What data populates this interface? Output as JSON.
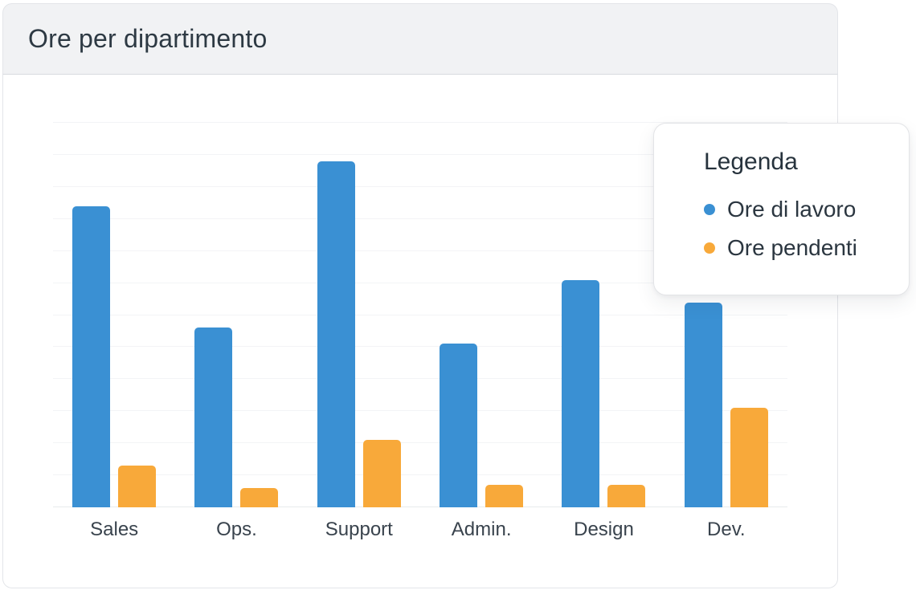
{
  "header": {
    "title": "Ore per dipartimento"
  },
  "legend": {
    "title": "Legenda",
    "items": [
      {
        "label": "Ore di lavoro",
        "color": "#3A90D3"
      },
      {
        "label": "Ore pendenti",
        "color": "#F8A93A"
      }
    ]
  },
  "chart_data": {
    "type": "bar",
    "title": "Ore per dipartimento",
    "categories": [
      "Sales",
      "Ops.",
      "Support",
      "Admin.",
      "Design",
      "Dev."
    ],
    "series": [
      {
        "name": "Ore di lavoro",
        "color": "#3A90D3",
        "values": [
          94,
          56,
          108,
          51,
          71,
          64
        ]
      },
      {
        "name": "Ore pendenti",
        "color": "#F8A93A",
        "values": [
          13,
          6,
          21,
          7,
          7,
          31
        ]
      }
    ],
    "xlabel": "",
    "ylabel": "",
    "ylim": [
      0,
      120
    ],
    "grid": true,
    "grid_interval": 10,
    "gridlines": "horizontal",
    "y_tick_labels_visible": false,
    "legend_position": "top-right",
    "colors": {
      "bar_blue": "#3A90D3",
      "bar_orange": "#F8A93A",
      "header_bg": "#F1F2F4",
      "card_border": "#E3E5E9",
      "gridline": "#F3F4F6",
      "baseline": "#E8EAEC",
      "text": "#2D3943"
    }
  }
}
